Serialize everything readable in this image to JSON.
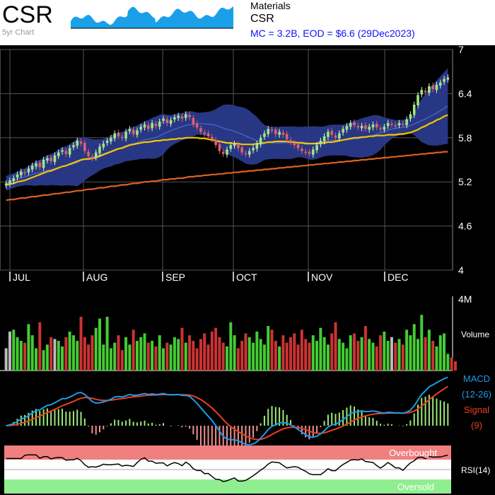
{
  "header": {
    "ticker": "CSR",
    "sparkline_label": "5yr Chart",
    "sector": "Materials",
    "company": "CSR",
    "market_info": "MC = 3.2B, EOD = $6.6 (29Dec2023)"
  },
  "chart_data": [
    {
      "type": "candlestick",
      "name": "price",
      "y_ticks": [
        "7",
        "6.4",
        "5.8",
        "5.2",
        "4.6",
        "4"
      ],
      "ylim": [
        4,
        7
      ],
      "x_ticks": [
        "JUL",
        "AUG",
        "SEP",
        "OCT",
        "NOV",
        "DEC"
      ],
      "close": [
        5.18,
        5.22,
        5.25,
        5.3,
        5.34,
        5.32,
        5.38,
        5.42,
        5.45,
        5.4,
        5.5,
        5.52,
        5.48,
        5.56,
        5.6,
        5.63,
        5.58,
        5.66,
        5.7,
        5.76,
        5.72,
        5.62,
        5.55,
        5.52,
        5.6,
        5.68,
        5.72,
        5.76,
        5.8,
        5.86,
        5.82,
        5.8,
        5.88,
        5.92,
        5.85,
        5.9,
        5.95,
        5.98,
        5.92,
        6.0,
        5.96,
        6.02,
        6.06,
        6.0,
        6.04,
        6.08,
        6.1,
        6.06,
        6.12,
        6.08,
        5.98,
        5.94,
        5.88,
        5.85,
        5.82,
        5.78,
        5.7,
        5.62,
        5.58,
        5.64,
        5.7,
        5.72,
        5.66,
        5.6,
        5.58,
        5.62,
        5.66,
        5.72,
        5.8,
        5.86,
        5.92,
        5.9,
        5.85,
        5.88,
        5.84,
        5.78,
        5.74,
        5.7,
        5.66,
        5.62,
        5.6,
        5.58,
        5.64,
        5.7,
        5.76,
        5.82,
        5.88,
        5.84,
        5.8,
        5.86,
        5.92,
        5.96,
        6.0,
        5.97,
        5.94,
        5.96,
        5.92,
        5.95,
        5.98,
        5.94,
        5.92,
        5.95,
        6.0,
        5.98,
        5.96,
        6.0,
        5.98,
        6.05,
        6.12,
        6.25,
        6.38,
        6.45,
        6.42,
        6.5,
        6.46,
        6.52,
        6.55,
        6.6,
        6.62
      ],
      "ma_short": [
        5.16,
        5.17,
        5.18,
        5.2,
        5.21,
        5.22,
        5.24,
        5.26,
        5.28,
        5.3,
        5.32,
        5.34,
        5.35,
        5.37,
        5.39,
        5.41,
        5.42,
        5.44,
        5.46,
        5.48,
        5.5,
        5.51,
        5.51,
        5.52,
        5.53,
        5.55,
        5.57,
        5.59,
        5.61,
        5.63,
        5.65,
        5.66,
        5.68,
        5.7,
        5.71,
        5.72,
        5.73,
        5.74,
        5.74,
        5.75,
        5.76,
        5.76,
        5.77,
        5.77,
        5.78,
        5.78,
        5.79,
        5.79,
        5.8,
        5.8,
        5.8,
        5.8,
        5.79,
        5.79,
        5.78,
        5.77,
        5.76,
        5.75,
        5.74,
        5.73,
        5.73,
        5.72,
        5.72,
        5.71,
        5.71,
        5.71,
        5.71,
        5.72,
        5.72,
        5.73,
        5.74,
        5.74,
        5.75,
        5.75,
        5.75,
        5.75,
        5.74,
        5.74,
        5.73,
        5.73,
        5.72,
        5.72,
        5.72,
        5.72,
        5.73,
        5.73,
        5.74,
        5.74,
        5.75,
        5.76,
        5.77,
        5.78,
        5.79,
        5.8,
        5.8,
        5.81,
        5.81,
        5.82,
        5.82,
        5.83,
        5.83,
        5.83,
        5.84,
        5.84,
        5.84,
        5.85,
        5.85,
        5.86,
        5.87,
        5.89,
        5.91,
        5.94,
        5.96,
        5.99,
        6.01,
        6.04,
        6.06,
        6.09,
        6.11
      ],
      "ma_long": [
        4.95,
        4.96,
        4.96,
        4.97,
        4.98,
        4.98,
        4.99,
        5.0,
        5.0,
        5.01,
        5.02,
        5.02,
        5.03,
        5.04,
        5.04,
        5.05,
        5.06,
        5.06,
        5.07,
        5.08,
        5.08,
        5.09,
        5.1,
        5.1,
        5.11,
        5.12,
        5.12,
        5.13,
        5.14,
        5.14,
        5.15,
        5.16,
        5.16,
        5.17,
        5.18,
        5.18,
        5.19,
        5.2,
        5.2,
        5.21,
        5.21,
        5.22,
        5.23,
        5.23,
        5.24,
        5.24,
        5.25,
        5.25,
        5.26,
        5.27,
        5.27,
        5.28,
        5.28,
        5.29,
        5.29,
        5.3,
        5.3,
        5.31,
        5.31,
        5.32,
        5.32,
        5.33,
        5.33,
        5.34,
        5.34,
        5.35,
        5.35,
        5.36,
        5.36,
        5.37,
        5.37,
        5.38,
        5.38,
        5.39,
        5.39,
        5.4,
        5.4,
        5.41,
        5.41,
        5.42,
        5.42,
        5.43,
        5.43,
        5.44,
        5.44,
        5.45,
        5.45,
        5.46,
        5.46,
        5.47,
        5.47,
        5.48,
        5.48,
        5.49,
        5.49,
        5.5,
        5.5,
        5.51,
        5.51,
        5.52,
        5.52,
        5.53,
        5.53,
        5.54,
        5.54,
        5.55,
        5.55,
        5.56,
        5.56,
        5.57,
        5.57,
        5.58,
        5.58,
        5.59,
        5.59,
        5.6,
        5.6,
        5.61,
        5.61
      ]
    },
    {
      "type": "bar",
      "name": "volume",
      "y_tick": "4M",
      "label": "Volume",
      "values": [
        1.2,
        2.1,
        2.2,
        1.8,
        1.6,
        1.5,
        2.5,
        1.9,
        1.2,
        2.6,
        1.1,
        1.4,
        1.8,
        1.7,
        1.6,
        1.3,
        1.8,
        2.1,
        1.9,
        1.6,
        2.9,
        1.8,
        1.4,
        1.9,
        2.3,
        2.8,
        1.4,
        2.9,
        1.2,
        1.5,
        1.9,
        1.1,
        1.8,
        1.4,
        2.2,
        1.6,
        1.8,
        2.0,
        1.5,
        1.6,
        1.3,
        1.9,
        1.2,
        1.5,
        1.4,
        1.8,
        1.7,
        2.3,
        1.5,
        1.9,
        1.6,
        1.2,
        1.7,
        2.0,
        1.4,
        2.1,
        2.3,
        1.8,
        1.5,
        1.3,
        2.6,
        1.9,
        1.2,
        1.6,
        2.0,
        1.8,
        1.5,
        2.1,
        1.7,
        1.4,
        2.4,
        2.2,
        1.6,
        1.3,
        1.9,
        1.5,
        1.8,
        2.0,
        1.4,
        2.2,
        1.7,
        1.5,
        1.9,
        1.6,
        2.3,
        1.8,
        1.4,
        2.0,
        2.6,
        1.7,
        1.5,
        1.2,
        1.9,
        2.0,
        1.6,
        1.8,
        2.4,
        1.7,
        1.5,
        1.3,
        1.9,
        2.1,
        1.6,
        1.8,
        1.5,
        1.7,
        1.4,
        2.2,
        1.9,
        2.5,
        1.7,
        3.0,
        1.8,
        2.2,
        1.6,
        1.3,
        1.9,
        2.0,
        0.9,
        0.7,
        0.5
      ],
      "ylim": [
        0,
        4
      ],
      "raw_up_color": "#44cc33",
      "raw_down_color": "#cc3333"
    },
    {
      "type": "line",
      "name": "macd",
      "labels": [
        "MACD",
        "(12-26)",
        "Signal",
        "(9)"
      ]
    },
    {
      "type": "line",
      "name": "rsi",
      "labels": [
        "Overbought",
        "RSI(14)",
        "Oversold"
      ]
    }
  ],
  "colors": {
    "up": "#44cc33",
    "down": "#cc3333",
    "band": "#2a3a8a",
    "ma_short": "#f5c400",
    "ma_long": "#e06020",
    "macd": "#1e9be8",
    "signal": "#e84020"
  }
}
